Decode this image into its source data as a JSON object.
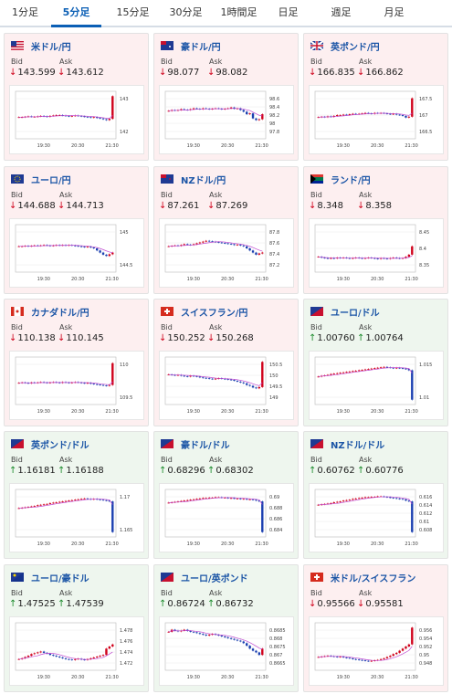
{
  "tabs": [
    {
      "label": "1分足",
      "active": false
    },
    {
      "label": "5分足",
      "active": true
    },
    {
      "label": "15分足",
      "active": false
    },
    {
      "label": "30分足",
      "active": false
    },
    {
      "label": "1時間足",
      "active": false
    },
    {
      "label": "日足",
      "active": false
    },
    {
      "label": "週足",
      "active": false
    },
    {
      "label": "月足",
      "active": false
    }
  ],
  "labels": {
    "bid": "Bid",
    "ask": "Ask"
  },
  "colors": {
    "down_bg": "#fdeff0",
    "up_bg": "#eef6ee",
    "pair_text": "#1b55a6",
    "bull_candle": "#d0021b",
    "bear_candle": "#1a3fb0",
    "ma_line": "#c04ad0",
    "down_arrow": "#d0021b",
    "up_arrow": "#1a8a2a"
  },
  "cards": [
    {
      "pair": "米ドル/円",
      "flag": "us-flag",
      "dir": "down",
      "bid": "143.599",
      "ask": "143.612",
      "chart_data": {
        "type": "candlestick",
        "x_ticks": [
          "19:30",
          "20:30",
          "21:30"
        ],
        "y_ticks": [
          "143",
          "142"
        ],
        "ylim": [
          141.6,
          143.8
        ],
        "shape": [
          0.45,
          0.45,
          0.46,
          0.47,
          0.46,
          0.46,
          0.47,
          0.48,
          0.47,
          0.46,
          0.48,
          0.49,
          0.5,
          0.5,
          0.49,
          0.48,
          0.47,
          0.48,
          0.49,
          0.48,
          0.47,
          0.46,
          0.45,
          0.44,
          0.45,
          0.43,
          0.42,
          0.4,
          0.38,
          0.41,
          0.95
        ]
      }
    },
    {
      "pair": "豪ドル/円",
      "flag": "au-flag",
      "dir": "down",
      "bid": "98.077",
      "ask": "98.082",
      "chart_data": {
        "type": "candlestick",
        "x_ticks": [
          "19:30",
          "20:30",
          "21:30"
        ],
        "y_ticks": [
          "98.6",
          "98.4",
          "98.2",
          "98",
          "97.8"
        ],
        "ylim": [
          97.7,
          98.7
        ],
        "shape": [
          0.6,
          0.62,
          0.61,
          0.62,
          0.64,
          0.63,
          0.62,
          0.64,
          0.66,
          0.65,
          0.64,
          0.66,
          0.65,
          0.64,
          0.65,
          0.66,
          0.65,
          0.64,
          0.65,
          0.66,
          0.68,
          0.65,
          0.66,
          0.62,
          0.58,
          0.52,
          0.54,
          0.42,
          0.38,
          0.4,
          0.52
        ]
      }
    },
    {
      "pair": "英ポンド/円",
      "flag": "gb-flag",
      "dir": "down",
      "bid": "166.835",
      "ask": "166.862",
      "chart_data": {
        "type": "candlestick",
        "x_ticks": [
          "19:30",
          "20:30",
          "21:30"
        ],
        "y_ticks": [
          "167.5",
          "167",
          "166.5"
        ],
        "ylim": [
          166.3,
          167.7
        ],
        "shape": [
          0.45,
          0.46,
          0.45,
          0.47,
          0.46,
          0.48,
          0.5,
          0.5,
          0.51,
          0.5,
          0.52,
          0.53,
          0.52,
          0.53,
          0.54,
          0.55,
          0.54,
          0.53,
          0.55,
          0.54,
          0.55,
          0.54,
          0.53,
          0.52,
          0.53,
          0.51,
          0.5,
          0.48,
          0.44,
          0.46,
          0.9
        ]
      }
    },
    {
      "pair": "ユーロ/円",
      "flag": "eu-flag",
      "dir": "down",
      "bid": "144.688",
      "ask": "144.713",
      "chart_data": {
        "type": "candlestick",
        "x_ticks": [
          "19:30",
          "20:30",
          "21:30"
        ],
        "y_ticks": [
          "145",
          "144.5"
        ],
        "ylim": [
          144.2,
          145.3
        ],
        "shape": [
          0.55,
          0.55,
          0.56,
          0.55,
          0.56,
          0.57,
          0.56,
          0.57,
          0.58,
          0.57,
          0.56,
          0.57,
          0.58,
          0.57,
          0.58,
          0.57,
          0.58,
          0.57,
          0.56,
          0.55,
          0.54,
          0.53,
          0.54,
          0.52,
          0.5,
          0.45,
          0.4,
          0.35,
          0.32,
          0.36,
          0.4
        ]
      }
    },
    {
      "pair": "NZドル/円",
      "flag": "nz-flag",
      "dir": "down",
      "bid": "87.261",
      "ask": "87.269",
      "chart_data": {
        "type": "candlestick",
        "x_ticks": [
          "19:30",
          "20:30",
          "21:30"
        ],
        "y_ticks": [
          "87.8",
          "87.6",
          "87.4",
          "87.2"
        ],
        "ylim": [
          87.0,
          87.9
        ],
        "shape": [
          0.55,
          0.56,
          0.57,
          0.56,
          0.58,
          0.6,
          0.59,
          0.58,
          0.6,
          0.62,
          0.64,
          0.66,
          0.68,
          0.67,
          0.66,
          0.65,
          0.64,
          0.63,
          0.62,
          0.61,
          0.6,
          0.58,
          0.59,
          0.57,
          0.55,
          0.5,
          0.45,
          0.4,
          0.35,
          0.38,
          0.4
        ]
      }
    },
    {
      "pair": "ランド/円",
      "flag": "za-flag",
      "dir": "down",
      "bid": "8.348",
      "ask": "8.358",
      "chart_data": {
        "type": "candlestick",
        "x_ticks": [
          "19:30",
          "20:30",
          "21:30"
        ],
        "y_ticks": [
          "8.45",
          "8.4",
          "8.35"
        ],
        "ylim": [
          8.32,
          8.46
        ],
        "shape": [
          0.3,
          0.28,
          0.27,
          0.26,
          0.27,
          0.26,
          0.28,
          0.27,
          0.28,
          0.27,
          0.26,
          0.27,
          0.28,
          0.27,
          0.26,
          0.27,
          0.28,
          0.27,
          0.26,
          0.25,
          0.27,
          0.26,
          0.25,
          0.27,
          0.28,
          0.27,
          0.26,
          0.27,
          0.3,
          0.35,
          0.55
        ]
      }
    },
    {
      "pair": "カナダドル/円",
      "flag": "ca-flag",
      "dir": "down",
      "bid": "110.138",
      "ask": "110.145",
      "chart_data": {
        "type": "candlestick",
        "x_ticks": [
          "19:30",
          "20:30",
          "21:30"
        ],
        "y_ticks": [
          "110",
          "109.5"
        ],
        "ylim": [
          109.2,
          110.6
        ],
        "shape": [
          0.45,
          0.46,
          0.45,
          0.44,
          0.46,
          0.45,
          0.46,
          0.47,
          0.46,
          0.45,
          0.46,
          0.47,
          0.46,
          0.45,
          0.47,
          0.46,
          0.45,
          0.46,
          0.47,
          0.46,
          0.45,
          0.44,
          0.45,
          0.43,
          0.42,
          0.41,
          0.4,
          0.39,
          0.38,
          0.4,
          0.92
        ]
      }
    },
    {
      "pair": "スイスフラン/円",
      "flag": "ch-flag",
      "dir": "down",
      "bid": "150.252",
      "ask": "150.268",
      "chart_data": {
        "type": "candlestick",
        "x_ticks": [
          "19:30",
          "20:30",
          "21:30"
        ],
        "y_ticks": [
          "150.5",
          "150",
          "149.5",
          "149"
        ],
        "ylim": [
          148.7,
          150.8
        ],
        "shape": [
          0.65,
          0.64,
          0.63,
          0.64,
          0.62,
          0.61,
          0.6,
          0.62,
          0.61,
          0.6,
          0.58,
          0.57,
          0.56,
          0.55,
          0.54,
          0.55,
          0.56,
          0.55,
          0.54,
          0.53,
          0.52,
          0.5,
          0.48,
          0.46,
          0.44,
          0.4,
          0.38,
          0.34,
          0.32,
          0.35,
          0.95
        ]
      }
    },
    {
      "pair": "ユーロ/ドル",
      "flag": "eu-us-flag",
      "dir": "up",
      "bid": "1.00760",
      "ask": "1.00764",
      "chart_data": {
        "type": "candlestick",
        "x_ticks": [
          "19:30",
          "20:30",
          "21:30"
        ],
        "y_ticks": [
          "1.015",
          "1.01"
        ],
        "ylim": [
          1.004,
          1.02
        ],
        "shape": [
          0.6,
          0.62,
          0.63,
          0.64,
          0.66,
          0.67,
          0.68,
          0.69,
          0.7,
          0.71,
          0.72,
          0.73,
          0.74,
          0.75,
          0.76,
          0.77,
          0.78,
          0.79,
          0.8,
          0.81,
          0.82,
          0.83,
          0.82,
          0.81,
          0.8,
          0.81,
          0.8,
          0.79,
          0.78,
          0.75,
          0.05
        ]
      }
    },
    {
      "pair": "英ポンド/ドル",
      "flag": "gb-us-flag",
      "dir": "up",
      "bid": "1.16181",
      "ask": "1.16188",
      "chart_data": {
        "type": "candlestick",
        "x_ticks": [
          "19:30",
          "20:30",
          "21:30"
        ],
        "y_ticks": [
          "1.17",
          "1.165"
        ],
        "ylim": [
          1.158,
          1.175
        ],
        "shape": [
          0.62,
          0.63,
          0.64,
          0.65,
          0.66,
          0.67,
          0.69,
          0.7,
          0.71,
          0.72,
          0.74,
          0.75,
          0.76,
          0.77,
          0.78,
          0.79,
          0.8,
          0.81,
          0.82,
          0.83,
          0.84,
          0.85,
          0.84,
          0.83,
          0.84,
          0.83,
          0.82,
          0.81,
          0.8,
          0.78,
          0.05
        ]
      }
    },
    {
      "pair": "豪ドル/ドル",
      "flag": "au-us-flag",
      "dir": "up",
      "bid": "0.68296",
      "ask": "0.68302",
      "chart_data": {
        "type": "candlestick",
        "x_ticks": [
          "19:30",
          "20:30",
          "21:30"
        ],
        "y_ticks": [
          "0.69",
          "0.688",
          "0.686",
          "0.684"
        ],
        "ylim": [
          0.681,
          0.691
        ],
        "shape": [
          0.75,
          0.76,
          0.77,
          0.78,
          0.79,
          0.8,
          0.81,
          0.82,
          0.83,
          0.84,
          0.85,
          0.86,
          0.86,
          0.87,
          0.87,
          0.88,
          0.88,
          0.87,
          0.87,
          0.86,
          0.86,
          0.85,
          0.85,
          0.84,
          0.84,
          0.83,
          0.83,
          0.82,
          0.8,
          0.78,
          0.05
        ]
      }
    },
    {
      "pair": "NZドル/ドル",
      "flag": "nz-us-flag",
      "dir": "up",
      "bid": "0.60762",
      "ask": "0.60776",
      "chart_data": {
        "type": "candlestick",
        "x_ticks": [
          "19:30",
          "20:30",
          "21:30"
        ],
        "y_ticks": [
          "0.616",
          "0.614",
          "0.612",
          "0.61",
          "0.608"
        ],
        "ylim": [
          0.606,
          0.617
        ],
        "shape": [
          0.7,
          0.71,
          0.72,
          0.73,
          0.74,
          0.76,
          0.77,
          0.78,
          0.8,
          0.81,
          0.82,
          0.84,
          0.85,
          0.86,
          0.87,
          0.88,
          0.88,
          0.89,
          0.89,
          0.9,
          0.9,
          0.89,
          0.88,
          0.87,
          0.86,
          0.85,
          0.84,
          0.83,
          0.8,
          0.78,
          0.05
        ]
      }
    },
    {
      "pair": "ユーロ/豪ドル",
      "flag": "eu-au-flag",
      "dir": "up",
      "bid": "1.47525",
      "ask": "1.47539",
      "chart_data": {
        "type": "candlestick",
        "x_ticks": [
          "19:30",
          "20:30",
          "21:30"
        ],
        "y_ticks": [
          "1.478",
          "1.476",
          "1.474",
          "1.472"
        ],
        "ylim": [
          1.471,
          1.479
        ],
        "shape": [
          0.2,
          0.22,
          0.25,
          0.28,
          0.32,
          0.34,
          0.36,
          0.38,
          0.35,
          0.33,
          0.3,
          0.28,
          0.26,
          0.24,
          0.22,
          0.2,
          0.19,
          0.18,
          0.2,
          0.21,
          0.19,
          0.18,
          0.2,
          0.22,
          0.24,
          0.26,
          0.28,
          0.3,
          0.45,
          0.5,
          0.55
        ]
      }
    },
    {
      "pair": "ユーロ/英ポンド",
      "flag": "eu-gb-flag",
      "dir": "up",
      "bid": "0.86724",
      "ask": "0.86732",
      "chart_data": {
        "type": "candlestick",
        "x_ticks": [
          "19:30",
          "20:30",
          "21:30"
        ],
        "y_ticks": [
          "0.8685",
          "0.868",
          "0.8675",
          "0.867",
          "0.8665"
        ],
        "ylim": [
          0.8662,
          0.8688
        ],
        "shape": [
          0.85,
          0.9,
          0.88,
          0.86,
          0.88,
          0.9,
          0.87,
          0.85,
          0.84,
          0.82,
          0.8,
          0.78,
          0.76,
          0.78,
          0.8,
          0.78,
          0.76,
          0.74,
          0.72,
          0.7,
          0.68,
          0.66,
          0.64,
          0.62,
          0.58,
          0.52,
          0.45,
          0.4,
          0.36,
          0.3,
          0.45
        ]
      }
    },
    {
      "pair": "米ドル/スイスフラン",
      "flag": "us-ch-flag",
      "dir": "down",
      "bid": "0.95566",
      "ask": "0.95581",
      "chart_data": {
        "type": "candlestick",
        "x_ticks": [
          "19:30",
          "20:30",
          "21:30"
        ],
        "y_ticks": [
          "0.956",
          "0.954",
          "0.952",
          "0.95",
          "0.948"
        ],
        "ylim": [
          0.947,
          0.957
        ],
        "shape": [
          0.25,
          0.26,
          0.27,
          0.28,
          0.27,
          0.26,
          0.25,
          0.26,
          0.24,
          0.23,
          0.22,
          0.2,
          0.19,
          0.18,
          0.17,
          0.16,
          0.15,
          0.16,
          0.17,
          0.18,
          0.2,
          0.22,
          0.25,
          0.28,
          0.32,
          0.35,
          0.4,
          0.45,
          0.5,
          0.55,
          0.95
        ]
      }
    }
  ]
}
